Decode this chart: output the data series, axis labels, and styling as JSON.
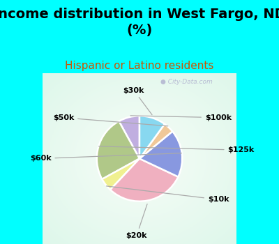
{
  "title": "Income distribution in West Fargo, ND\n(%)",
  "subtitle": "Hispanic or Latino residents",
  "labels": [
    "$100k",
    "$125k",
    "$10k",
    "$20k",
    "$60k",
    "$50k",
    "$30k"
  ],
  "sizes": [
    8,
    25,
    5,
    30,
    18,
    4,
    10
  ],
  "colors": [
    "#c0aee0",
    "#b0c888",
    "#f0f090",
    "#f0b0c0",
    "#8898e0",
    "#f0c898",
    "#88d8f0"
  ],
  "background_fig": "#00ffff",
  "background_chart": "#d8eee0",
  "title_fontsize": 14,
  "subtitle_fontsize": 11,
  "subtitle_color": "#cc5500",
  "label_color": "#000000",
  "watermark": "City-Data.com"
}
